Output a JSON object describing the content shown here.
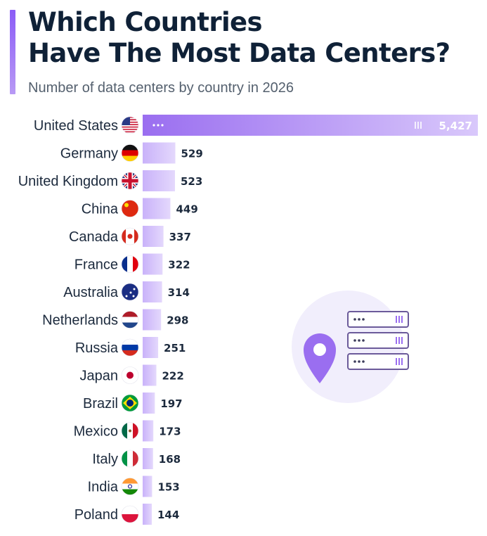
{
  "title_line1": "Which Countries",
  "title_line2": "Have The Most Data Centers?",
  "subtitle": "Number of data centers by country in 2026",
  "colors": {
    "accent": "#8b5cf6",
    "bar_light": "#d9c8fb",
    "bar_dark": "#9a6ef0",
    "title": "#0f2137"
  },
  "illustration": {
    "icons": [
      "location-pin-icon",
      "server-rack-icon"
    ]
  },
  "chart_data": {
    "type": "bar",
    "orientation": "horizontal",
    "title": "Which Countries Have The Most Data Centers?",
    "subtitle": "Number of data centers by country in 2026",
    "categories": [
      "United States",
      "Germany",
      "United Kingdom",
      "China",
      "Canada",
      "France",
      "Australia",
      "Netherlands",
      "Russia",
      "Japan",
      "Brazil",
      "Mexico",
      "Italy",
      "India",
      "Poland"
    ],
    "flags": [
      "us",
      "de",
      "gb",
      "cn",
      "ca",
      "fr",
      "au",
      "nl",
      "ru",
      "jp",
      "br",
      "mx",
      "it",
      "in",
      "pl"
    ],
    "values": [
      5427,
      529,
      523,
      449,
      337,
      322,
      314,
      298,
      251,
      222,
      197,
      173,
      168,
      153,
      144
    ],
    "value_labels": [
      "5,427",
      "529",
      "523",
      "449",
      "337",
      "322",
      "314",
      "298",
      "251",
      "222",
      "197",
      "173",
      "168",
      "153",
      "144"
    ],
    "xlim": [
      0,
      5427
    ],
    "grid": false,
    "legend": "none"
  }
}
